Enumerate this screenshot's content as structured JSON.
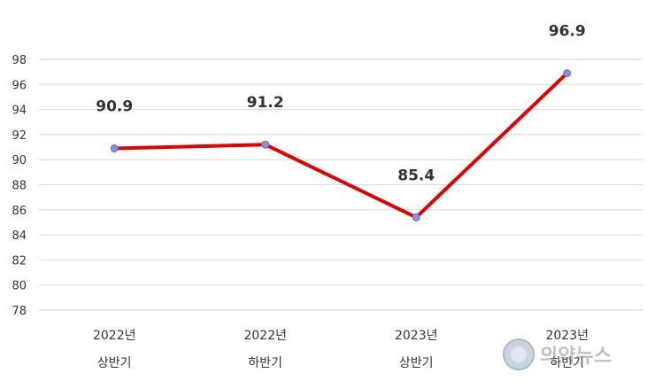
{
  "chart_data": {
    "type": "line",
    "categories": [
      [
        "2022년",
        "상반기"
      ],
      [
        "2022년",
        "하반기"
      ],
      [
        "2023년",
        "상반기"
      ],
      [
        "2023년",
        "하반기"
      ]
    ],
    "series": [
      {
        "values": [
          90.9,
          91.2,
          85.4,
          96.9
        ],
        "color": "#e00000",
        "marker_color": "#8a8fd8"
      }
    ],
    "data_labels": [
      "90.9",
      "91.2",
      "85.4",
      "96.9"
    ],
    "yticks": [
      "78",
      "80",
      "82",
      "84",
      "86",
      "88",
      "90",
      "92",
      "94",
      "96",
      "98"
    ],
    "ylim": [
      78,
      98
    ],
    "grid": true,
    "legend": "none"
  },
  "watermark": {
    "text": "의약뉴스",
    "icon": "news-logo-icon"
  }
}
